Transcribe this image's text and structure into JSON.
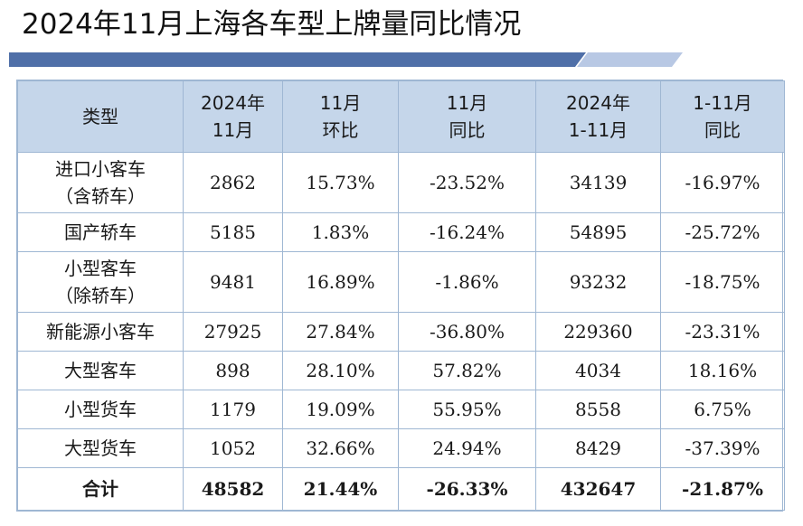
{
  "title": "2024年11月上海各车型上牌量同比情况",
  "colors": {
    "title_bar_dark": "#4f6fa8",
    "title_bar_light": "#b8c8e4",
    "header_bg": "#c5d6ea",
    "grid": "#9fb7d3"
  },
  "table": {
    "headers": [
      "类型",
      "2024年\n11月",
      "11月\n环比",
      "11月\n同比",
      "2024年\n1-11月",
      "1-11月\n同比"
    ],
    "rows": [
      [
        "进口小客车\n（含轿车）",
        "2862",
        "15.73%",
        "-23.52%",
        "34139",
        "-16.97%"
      ],
      [
        "国产轿车",
        "5185",
        "1.83%",
        "-16.24%",
        "54895",
        "-25.72%"
      ],
      [
        "小型客车\n（除轿车）",
        "9481",
        "16.89%",
        "-1.86%",
        "93232",
        "-18.75%"
      ],
      [
        "新能源小客车",
        "27925",
        "27.84%",
        "-36.80%",
        "229360",
        "-23.31%"
      ],
      [
        "大型客车",
        "898",
        "28.10%",
        "57.82%",
        "4034",
        "18.16%"
      ],
      [
        "小型货车",
        "1179",
        "19.09%",
        "55.95%",
        "8558",
        "6.75%"
      ],
      [
        "大型货车",
        "1052",
        "32.66%",
        "24.94%",
        "8429",
        "-37.39%"
      ]
    ],
    "total": [
      "合计",
      "48582",
      "21.44%",
      "-26.33%",
      "432647",
      "-21.87%"
    ]
  }
}
